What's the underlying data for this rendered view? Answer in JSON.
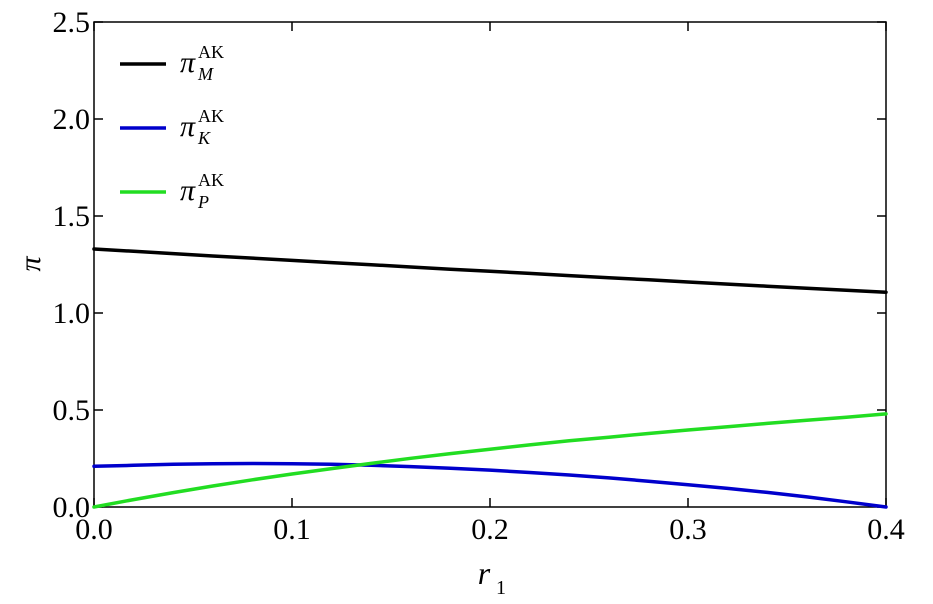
{
  "chart_data": {
    "type": "line",
    "xlabel": "r",
    "xlabel_subscript": "1",
    "ylabel": "π",
    "xlim": [
      0.0,
      0.4
    ],
    "ylim": [
      0.0,
      2.5
    ],
    "xticks": [
      "0.0",
      "0.1",
      "0.2",
      "0.3",
      "0.4"
    ],
    "yticks": [
      "0.0",
      "0.5",
      "1.0",
      "1.5",
      "2.0",
      "2.5"
    ],
    "grid": false,
    "legend_position": "top-left",
    "x": [
      0.0,
      0.02,
      0.04,
      0.06,
      0.08,
      0.1,
      0.12,
      0.14,
      0.16,
      0.18,
      0.2,
      0.22,
      0.24,
      0.26,
      0.28,
      0.3,
      0.32,
      0.34,
      0.36,
      0.38,
      0.4
    ],
    "series": [
      {
        "name_symbol": "π",
        "name_subscript": "M",
        "name_superscript": "AK",
        "color": "#000000",
        "values": [
          1.33,
          1.318,
          1.306,
          1.294,
          1.283,
          1.271,
          1.26,
          1.249,
          1.237,
          1.226,
          1.215,
          1.204,
          1.193,
          1.182,
          1.171,
          1.16,
          1.149,
          1.138,
          1.128,
          1.117,
          1.107
        ]
      },
      {
        "name_symbol": "π",
        "name_subscript": "K",
        "name_superscript": "AK",
        "color": "#0000cc",
        "values": [
          0.21,
          0.215,
          0.22,
          0.223,
          0.224,
          0.223,
          0.22,
          0.215,
          0.208,
          0.2,
          0.19,
          0.178,
          0.165,
          0.15,
          0.133,
          0.115,
          0.096,
          0.075,
          0.052,
          0.027,
          0.0
        ]
      },
      {
        "name_symbol": "π",
        "name_subscript": "P",
        "name_superscript": "AK",
        "color": "#22dd22",
        "values": [
          0.0,
          0.038,
          0.074,
          0.108,
          0.14,
          0.17,
          0.198,
          0.225,
          0.251,
          0.275,
          0.298,
          0.32,
          0.341,
          0.36,
          0.379,
          0.397,
          0.414,
          0.431,
          0.447,
          0.463,
          0.48
        ]
      }
    ]
  }
}
